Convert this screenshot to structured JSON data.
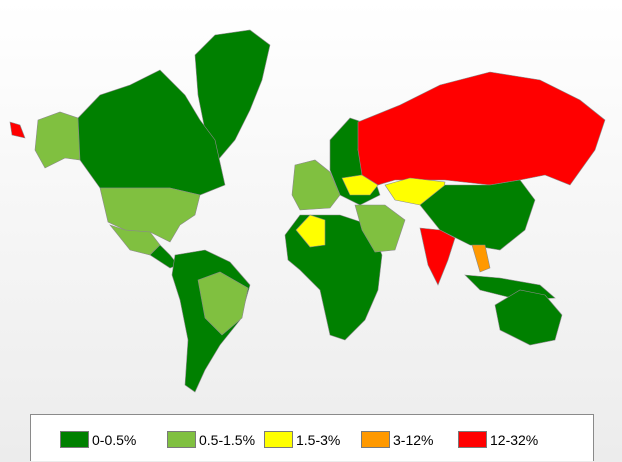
{
  "legend": [
    {
      "label": "0-0.5%",
      "color": "#008000"
    },
    {
      "label": "0.5-1.5%",
      "color": "#80c040"
    },
    {
      "label": "1.5-3%",
      "color": "#ffff00"
    },
    {
      "label": "3-12%",
      "color": "#ff9900"
    },
    {
      "label": "12-32%",
      "color": "#ff0000"
    }
  ],
  "regions": [
    {
      "name": "greenland",
      "class": "0-0.5%"
    },
    {
      "name": "canada",
      "class": "0-0.5%"
    },
    {
      "name": "alaska",
      "class": "0.5-1.5%"
    },
    {
      "name": "usa",
      "class": "0.5-1.5%"
    },
    {
      "name": "mexico",
      "class": "0.5-1.5%"
    },
    {
      "name": "central-america",
      "class": "0-0.5%"
    },
    {
      "name": "south-america",
      "class": "0-0.5%"
    },
    {
      "name": "brazil",
      "class": "0.5-1.5%"
    },
    {
      "name": "africa",
      "class": "0-0.5%"
    },
    {
      "name": "algeria",
      "class": "1.5-3%"
    },
    {
      "name": "europe",
      "class": "0-0.5%"
    },
    {
      "name": "western-europe",
      "class": "0.5-1.5%"
    },
    {
      "name": "ukraine",
      "class": "1.5-3%"
    },
    {
      "name": "russia",
      "class": "12-32%"
    },
    {
      "name": "kazakhstan",
      "class": "1.5-3%"
    },
    {
      "name": "middle-east",
      "class": "0.5-1.5%"
    },
    {
      "name": "china",
      "class": "0-0.5%"
    },
    {
      "name": "india",
      "class": "12-32%"
    },
    {
      "name": "vietnam",
      "class": "3-12%"
    },
    {
      "name": "australia",
      "class": "0-0.5%"
    },
    {
      "name": "indonesia",
      "class": "0-0.5%"
    },
    {
      "name": "chukotka-east",
      "class": "12-32%"
    }
  ]
}
